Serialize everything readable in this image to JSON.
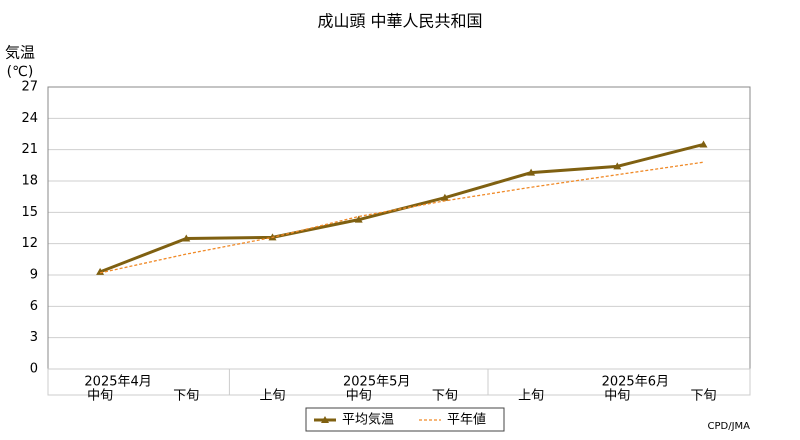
{
  "chart_data": {
    "type": "line",
    "title": "成山頭  中華人民共和国",
    "y_label": [
      "気温",
      "(℃)"
    ],
    "categories": [
      "中旬",
      "下旬",
      "上旬",
      "中旬",
      "下旬",
      "上旬",
      "中旬",
      "下旬"
    ],
    "group_labels": [
      "2025年4月",
      null,
      null,
      "2025年5月",
      null,
      null,
      "2025年6月",
      null
    ],
    "series": [
      {
        "name": "平均気温",
        "color": "#7f6011",
        "style": "solid",
        "values": [
          9.3,
          12.5,
          12.6,
          14.3,
          16.4,
          18.8,
          19.4,
          21.5
        ]
      },
      {
        "name": "平年値",
        "color": "#f08a28",
        "style": "dashed",
        "values": [
          9.2,
          11.0,
          12.6,
          14.6,
          16.1,
          17.4,
          18.6,
          19.8
        ]
      }
    ],
    "ylim": [
      0,
      27
    ],
    "yticks": [
      0,
      3,
      6,
      9,
      12,
      15,
      18,
      21,
      24,
      27
    ],
    "grid": true,
    "source": "CPD/JMA"
  }
}
